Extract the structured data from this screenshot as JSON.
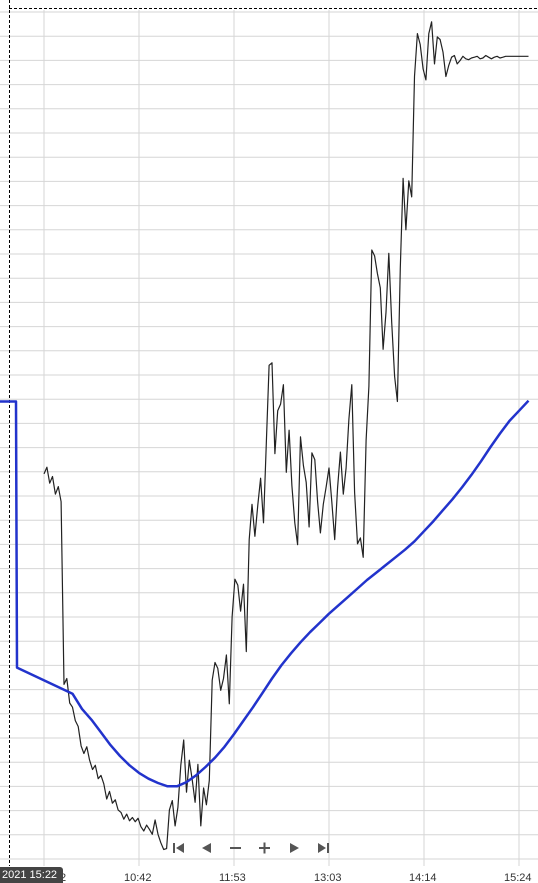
{
  "chart_data": {
    "type": "line",
    "x_ticks": [
      "10:42",
      "11:53",
      "13:03",
      "14:14",
      "15:24"
    ],
    "x_tick_partial": "2",
    "ylim": [
      0,
      100
    ],
    "grid": true,
    "colors": {
      "price": "#222222",
      "average": "#2233cc",
      "grid": "#d6d6d6"
    },
    "series": [
      {
        "key": "price",
        "x": [
          0,
          0.03,
          0.06,
          0.09,
          0.12,
          0.15,
          0.18,
          0.21,
          0.24,
          0.27,
          0.3,
          0.33,
          0.36,
          0.39,
          0.42,
          0.45,
          0.48,
          0.51,
          0.54,
          0.57,
          0.6,
          0.63,
          0.66,
          0.69,
          0.72,
          0.75,
          0.78,
          0.81,
          0.84,
          0.87,
          0.9,
          0.93,
          0.96,
          0.99,
          1.02,
          1.05,
          1.08,
          1.11,
          1.14,
          1.17,
          1.2,
          1.23,
          1.26,
          1.29,
          1.32,
          1.35,
          1.38,
          1.41,
          1.44,
          1.47,
          1.5,
          1.53,
          1.56,
          1.59,
          1.62,
          1.65,
          1.68,
          1.71,
          1.74,
          1.77,
          1.8,
          1.83,
          1.86,
          1.89,
          1.92,
          1.95,
          1.98,
          2.01,
          2.04,
          2.07,
          2.1,
          2.13,
          2.16,
          2.19,
          2.22,
          2.25,
          2.28,
          2.31,
          2.34,
          2.37,
          2.4,
          2.43,
          2.46,
          2.49,
          2.52,
          2.55,
          2.58,
          2.61,
          2.64,
          2.67,
          2.7,
          2.73,
          2.76,
          2.79,
          2.82,
          2.85,
          2.88,
          2.91,
          2.94,
          2.97,
          3.0,
          3.03,
          3.06,
          3.09,
          3.12,
          3.15,
          3.18,
          3.21,
          3.24,
          3.27,
          3.3,
          3.33,
          3.36,
          3.39,
          3.42,
          3.45,
          3.48,
          3.51,
          3.54,
          3.57,
          3.6,
          3.63,
          3.66,
          3.69,
          3.72,
          3.75,
          3.78,
          3.81,
          3.84,
          3.87,
          3.9,
          3.93,
          3.96,
          3.99,
          4.02,
          4.05,
          4.08,
          4.11,
          4.14,
          4.17,
          4.2,
          4.23,
          4.26,
          4.29,
          4.32,
          4.35,
          4.38,
          4.41,
          4.44,
          4.47,
          4.5,
          4.53,
          4.56,
          4.59,
          4.62,
          4.65,
          4.68,
          4.71,
          4.74,
          4.77,
          4.8,
          4.83,
          4.86,
          4.89,
          4.92,
          4.95,
          4.98,
          5.01,
          5.04,
          5.07,
          5.1
        ],
        "values": [
          44.9,
          45.7,
          43.8,
          44.6,
          42.5,
          43.4,
          41.6,
          19.9,
          20.6,
          17.7,
          17.2,
          15.6,
          14.9,
          12.6,
          11.7,
          12.5,
          10.9,
          9.8,
          10.3,
          8.7,
          9.1,
          8.1,
          6.3,
          7.2,
          5.8,
          6.2,
          5.0,
          4.7,
          3.9,
          4.5,
          3.7,
          4.1,
          3.6,
          4.0,
          3.0,
          2.5,
          3.2,
          2.7,
          2.1,
          3.8,
          2.1,
          1.1,
          0.3,
          0.4,
          5.0,
          6.1,
          3.1,
          5.3,
          10.3,
          13.3,
          7.1,
          10.9,
          8.6,
          5.9,
          10.4,
          3.1,
          7.6,
          5.6,
          8.5,
          20.4,
          22.5,
          21.8,
          19.2,
          20.6,
          23.4,
          17.6,
          27.9,
          32.4,
          31.7,
          28.6,
          31.8,
          23.8,
          37.1,
          41.3,
          37.5,
          41.2,
          44.4,
          39.1,
          48.5,
          57.8,
          58.1,
          47.3,
          52.4,
          53.2,
          55.5,
          45.1,
          50.1,
          43.5,
          39.1,
          36.5,
          49.3,
          45.9,
          43.9,
          38.6,
          47.4,
          46.6,
          41.6,
          37.9,
          41.3,
          43.4,
          45.6,
          41.6,
          37.1,
          43.3,
          47.5,
          42.5,
          45.6,
          51.4,
          55.5,
          42.7,
          36.6,
          37.3,
          35.0,
          48.9,
          55.3,
          71.5,
          70.8,
          68.7,
          67.0,
          59.7,
          64.1,
          71.1,
          62.9,
          56.5,
          53.5,
          69.4,
          80.0,
          73.9,
          79.7,
          77.8,
          92.1,
          97.2,
          95.9,
          93.0,
          91.7,
          97.2,
          98.6,
          93.6,
          96.8,
          96.5,
          95.0,
          92.1,
          93.4,
          94.4,
          94.6,
          93.6,
          94.0,
          94.5,
          94.2,
          94.1,
          94.3,
          94.4,
          94.5,
          94.2,
          94.3,
          94.6,
          94.4,
          94.2,
          94.4,
          94.5,
          94.3,
          94.4,
          94.5,
          94.5,
          94.5,
          94.5,
          94.5,
          94.5,
          94.5,
          94.5,
          94.5
        ]
      },
      {
        "key": "average",
        "x": [
          0.0,
          0.1,
          0.2,
          0.3,
          0.4,
          0.5,
          0.6,
          0.7,
          0.8,
          0.9,
          1.0,
          1.1,
          1.2,
          1.3,
          1.4,
          1.5,
          1.6,
          1.7,
          1.8,
          1.9,
          2.0,
          2.1,
          2.2,
          2.3,
          2.4,
          2.5,
          2.6,
          2.7,
          2.8,
          2.9,
          3.0,
          3.1,
          3.2,
          3.3,
          3.4,
          3.5,
          3.6,
          3.7,
          3.8,
          3.9,
          4.0,
          4.1,
          4.2,
          4.3,
          4.4,
          4.5,
          4.6,
          4.7,
          4.8,
          4.9,
          5.0,
          5.1
        ],
        "values": [
          53.5,
          53.5,
          21.9,
          18.8,
          17.0,
          15.7,
          14.2,
          12.7,
          11.4,
          10.3,
          9.4,
          8.7,
          8.2,
          7.8,
          7.8,
          8.3,
          9.1,
          10.1,
          11.2,
          12.5,
          14.0,
          15.6,
          17.2,
          18.9,
          20.6,
          22.2,
          23.6,
          24.9,
          26.1,
          27.2,
          28.3,
          29.3,
          30.3,
          31.3,
          32.3,
          33.2,
          34.1,
          35.0,
          35.9,
          36.9,
          38.1,
          39.3,
          40.6,
          41.9,
          43.3,
          44.8,
          46.4,
          48.1,
          49.7,
          51.2,
          52.4,
          53.6
        ]
      }
    ]
  }
}
